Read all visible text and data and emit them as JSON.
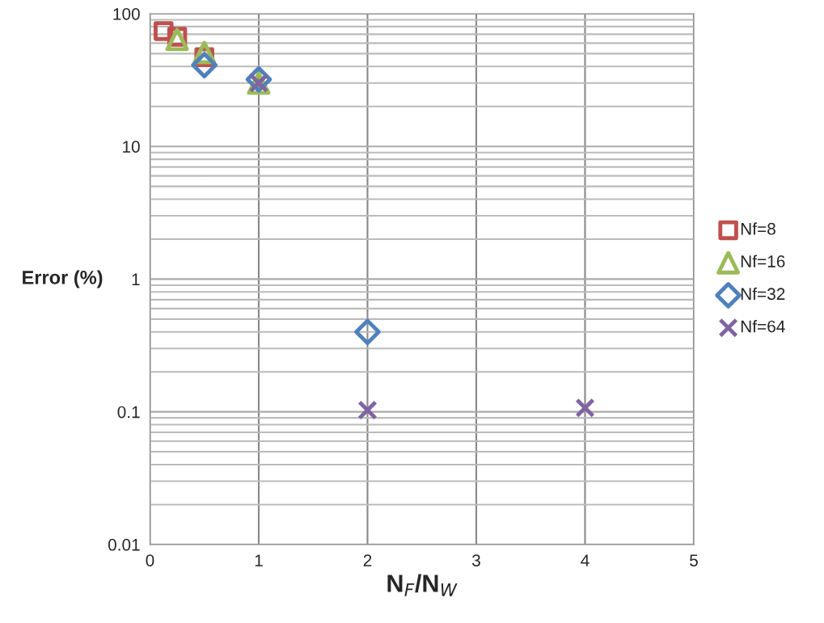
{
  "chart_data": {
    "type": "scatter",
    "xlabel": "N$_{F}$/N$_{W}$",
    "ylabel": "Error (%)",
    "series": [
      {
        "name": "Nf=8",
        "color": "#c0504d",
        "marker": "square",
        "x": [
          0.125,
          0.25,
          0.5
        ],
        "values": [
          74,
          67,
          47
        ]
      },
      {
        "name": "Nf=16",
        "color": "#9bbb59",
        "marker": "triangle",
        "x": [
          0.25,
          0.5,
          1
        ],
        "values": [
          64,
          51,
          30
        ]
      },
      {
        "name": "Nf=32",
        "color": "#4f81bd",
        "marker": "diamond",
        "x": [
          0.5,
          1,
          2
        ],
        "values": [
          41,
          32,
          0.4
        ]
      },
      {
        "name": "Nf=64",
        "color": "#8064a2",
        "marker": "cross",
        "x": [
          1,
          2,
          4
        ],
        "values": [
          30,
          0.103,
          0.107
        ]
      }
    ],
    "xlim": [
      0,
      5
    ],
    "xticks": [
      0,
      1,
      2,
      3,
      4,
      5
    ],
    "ylim": [
      0.01,
      100
    ],
    "yticks": [
      0.01,
      0.1,
      1,
      10,
      100
    ],
    "log": "y",
    "grid": true,
    "legend": "right"
  }
}
